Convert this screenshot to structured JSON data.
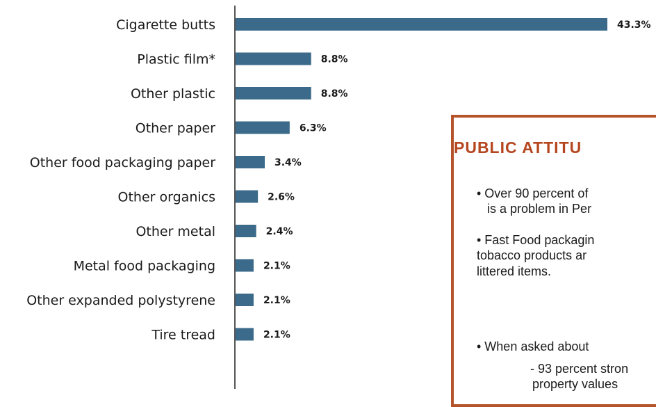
{
  "chart_data": {
    "type": "bar",
    "orientation": "horizontal",
    "categories": [
      "Cigarette butts",
      "Plastic film*",
      "Other plastic",
      "Other paper",
      "Other food packaging paper",
      "Other organics",
      "Other metal",
      "Metal food packaging",
      "Other expanded polystyrene",
      "Tire tread"
    ],
    "values": [
      43.3,
      8.8,
      8.8,
      6.3,
      3.4,
      2.6,
      2.4,
      2.1,
      2.1,
      2.1
    ],
    "value_labels": [
      "43.3%",
      "8.8%",
      "8.8%",
      "6.3%",
      "3.4%",
      "2.6%",
      "2.4%",
      "2.1%",
      "2.1%",
      "2.1%"
    ],
    "bar_color": "#3b6a8a",
    "title": "",
    "xlabel": "",
    "ylabel": "",
    "grid": false
  },
  "callout": {
    "title": "PUBLIC ATTITU",
    "lines": [
      "• Over 90 percent of",
      "is a problem in Per",
      "• Fast Food packagin",
      "tobacco products ar",
      "littered items.",
      "• When asked about",
      "- 93 percent stron",
      "property values"
    ],
    "border_color": "#b5532a",
    "title_color": "#b5461f"
  }
}
